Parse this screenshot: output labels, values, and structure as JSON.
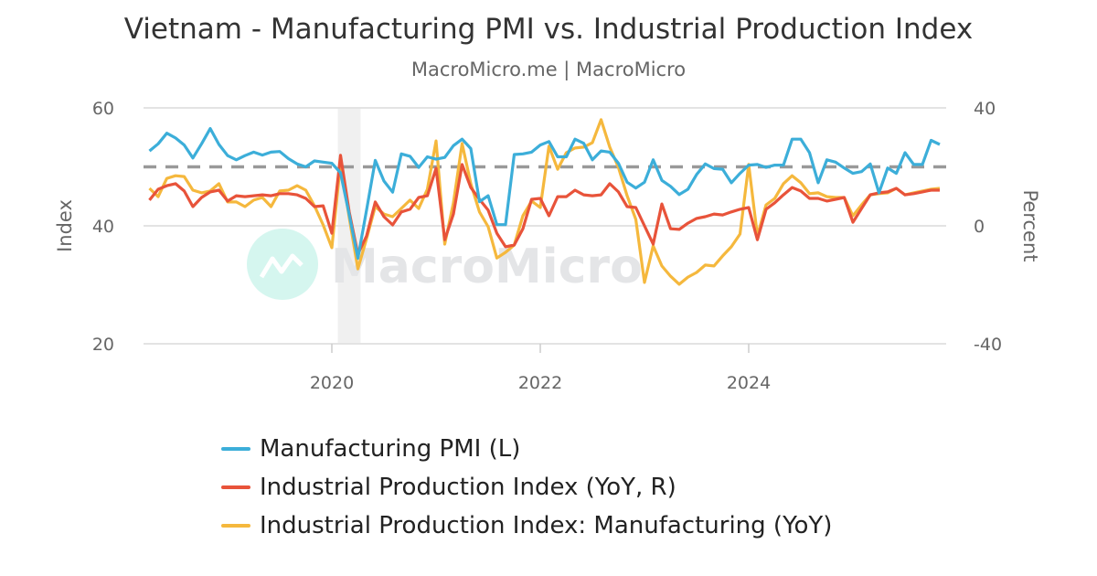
{
  "chart_data": {
    "type": "line",
    "title": "Vietnam - Manufacturing PMI vs. Industrial Production Index",
    "subtitle": "MacroMicro.me | MacroMicro",
    "watermark": "MacroMicro",
    "x_start": "2018-04",
    "x_end": "2025-11",
    "frequency": "monthly",
    "x_ticks": [
      "2020",
      "2022",
      "2024"
    ],
    "left_axis": {
      "label": "Index",
      "range": [
        20,
        60
      ],
      "ticks": [
        "60",
        "40",
        "20"
      ]
    },
    "right_axis": {
      "label": "Percent",
      "range": [
        -40,
        40
      ],
      "ticks": [
        "40",
        "0",
        "-40"
      ]
    },
    "reference_line": {
      "axis": "left",
      "value": 50,
      "style": "dashed",
      "color": "#999999"
    },
    "shaded_period": [
      "2020-02",
      "2020-04"
    ],
    "grid": "horizontal",
    "legend_position": "bottom",
    "series": [
      {
        "name": "Manufacturing PMI (L)",
        "axis": "left",
        "color": "#3caed9",
        "values": [
          52.7,
          53.9,
          55.7,
          54.9,
          53.7,
          51.5,
          53.9,
          56.5,
          53.8,
          51.9,
          51.2,
          51.9,
          52.5,
          52.0,
          52.5,
          52.6,
          51.4,
          50.5,
          50.0,
          51.0,
          50.8,
          50.6,
          49.0,
          41.9,
          34.5,
          42.7,
          51.1,
          47.6,
          45.7,
          52.2,
          51.8,
          49.9,
          51.7,
          51.3,
          51.6,
          53.6,
          54.7,
          53.1,
          44.1,
          45.1,
          40.2,
          40.2,
          52.1,
          52.2,
          52.5,
          53.7,
          54.3,
          51.7,
          51.7,
          54.7,
          54.0,
          51.2,
          52.7,
          52.5,
          50.6,
          47.4,
          46.4,
          47.4,
          51.2,
          47.7,
          46.7,
          45.3,
          46.2,
          48.7,
          50.5,
          49.7,
          49.6,
          47.3,
          48.9,
          50.3,
          50.4,
          49.9,
          50.3,
          50.3,
          54.7,
          54.7,
          52.4,
          47.3,
          51.2,
          50.8,
          49.8,
          48.9,
          49.2,
          50.5,
          45.6,
          49.8,
          48.9,
          52.4,
          50.4,
          50.4,
          54.5,
          53.8
        ]
      },
      {
        "name": "Industrial Production Index (YoY, R)",
        "axis": "right",
        "color": "#e8533a",
        "values": [
          8.7,
          12.4,
          13.6,
          14.3,
          11.8,
          6.5,
          9.6,
          11.5,
          12.1,
          8.4,
          10.2,
          9.9,
          10.2,
          10.5,
          10.2,
          10.9,
          10.9,
          10.5,
          9.3,
          6.5,
          6.8,
          -2.5,
          23.9,
          4.7,
          -9.6,
          -3.4,
          8.1,
          3.1,
          0.3,
          4.7,
          5.6,
          9.6,
          10.2,
          19.5,
          -4.7,
          4.0,
          20.8,
          13.0,
          9.0,
          5.3,
          -2.5,
          -7.1,
          -6.5,
          -1.0,
          9.0,
          9.3,
          3.4,
          9.9,
          9.9,
          12.1,
          10.5,
          10.2,
          10.5,
          14.3,
          11.5,
          6.5,
          6.2,
          0.0,
          -6.2,
          7.4,
          -1.0,
          -1.2,
          0.9,
          2.5,
          3.1,
          4.0,
          3.7,
          4.7,
          5.6,
          6.2,
          -4.7,
          5.6,
          7.8,
          10.5,
          13.0,
          11.8,
          9.3,
          9.3,
          8.4,
          9.0,
          9.6,
          1.2,
          5.9,
          10.5,
          11.2,
          11.5,
          12.7,
          10.5,
          10.9,
          11.5,
          12.1,
          12.1
        ]
      },
      {
        "name": "Industrial Production Index: Manufacturing (YoY)",
        "axis": "right",
        "color": "#f5b83d",
        "values": [
          12.7,
          9.9,
          16.1,
          17.0,
          16.7,
          12.1,
          11.2,
          11.8,
          14.3,
          8.1,
          8.1,
          6.5,
          8.7,
          9.6,
          6.5,
          11.8,
          12.1,
          13.6,
          12.1,
          6.8,
          0.3,
          -7.4,
          21.4,
          2.8,
          -14.6,
          -4.3,
          6.5,
          4.0,
          3.1,
          5.9,
          8.7,
          5.9,
          12.4,
          28.8,
          -6.2,
          7.8,
          27.9,
          14.3,
          4.7,
          -0.3,
          -10.9,
          -9.0,
          -6.5,
          3.4,
          8.4,
          6.2,
          27.0,
          19.2,
          24.8,
          26.4,
          26.7,
          28.2,
          36.0,
          26.7,
          19.8,
          10.2,
          2.2,
          -19.2,
          -6.8,
          -13.6,
          -17.1,
          -19.8,
          -17.4,
          -15.8,
          -13.3,
          -13.6,
          -10.2,
          -7.1,
          -2.8,
          20.8,
          -3.4,
          7.1,
          9.3,
          14.3,
          17.0,
          14.6,
          10.9,
          11.2,
          9.9,
          9.6,
          9.6,
          3.4,
          7.1,
          10.5,
          10.9,
          11.2,
          12.7,
          10.5,
          11.2,
          11.8,
          12.4,
          12.7
        ]
      }
    ]
  }
}
